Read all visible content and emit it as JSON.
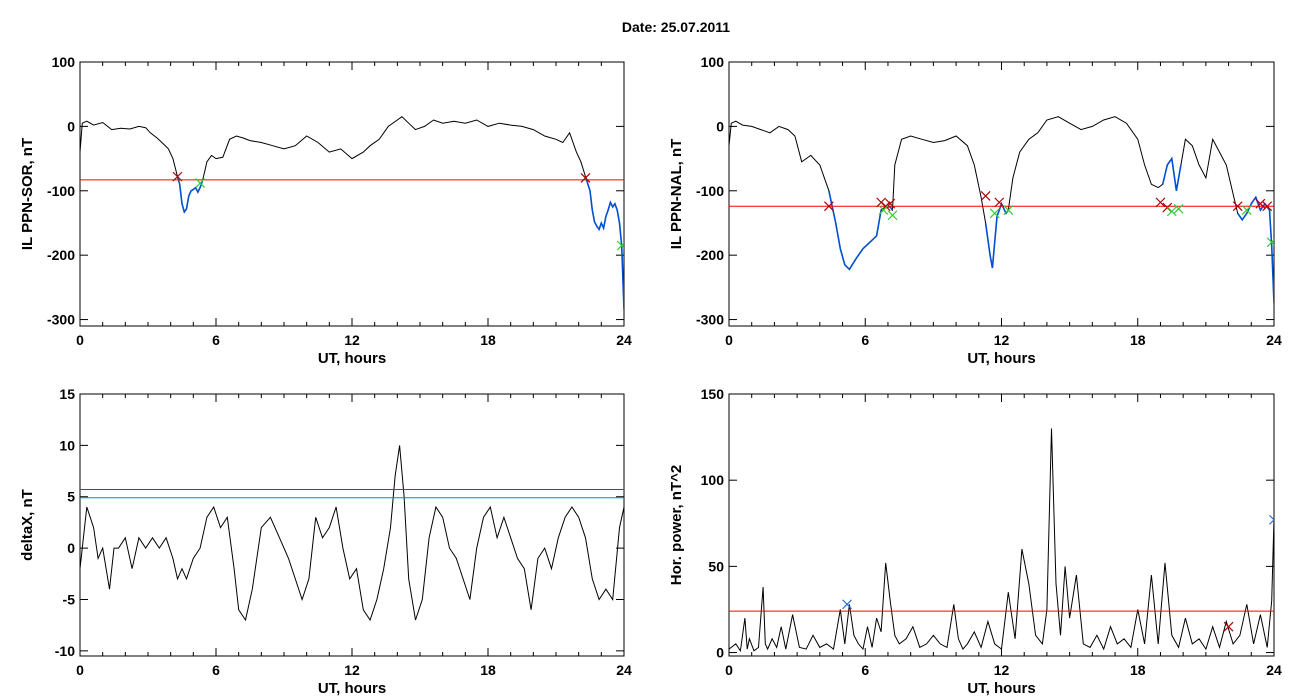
{
  "title": "Date:  25.07.2011",
  "colors": {
    "trace": "#000000",
    "threshold_red": "#ff0000",
    "threshold_cyan": "#0090a0",
    "highlight": "#0050d0",
    "marker_red": "#b00000",
    "marker_green": "#33cc33",
    "marker_blue": "#3070d0"
  },
  "chart_data": [
    {
      "type": "line",
      "title": "",
      "xlabel": "UT, hours",
      "ylabel": "IL PPN-SOR, nT",
      "xlim": [
        0,
        24
      ],
      "ylim": [
        -310,
        100
      ],
      "xticks": [
        0,
        6,
        12,
        18,
        24
      ],
      "yticks": [
        100,
        0,
        -100,
        -200,
        -300
      ],
      "thresholds": [
        {
          "value": -83,
          "color": "#ff0000"
        }
      ],
      "series": [
        {
          "x": [
            0,
            0.1,
            0.3,
            0.6,
            1.0,
            1.4,
            1.8,
            2.2,
            2.6,
            2.9,
            3.1,
            3.4,
            3.7,
            3.9,
            4.1,
            4.3,
            4.4,
            4.5,
            4.6,
            4.7,
            4.8,
            4.9,
            5.0,
            5.1,
            5.2,
            5.3,
            5.4,
            5.5,
            5.6,
            5.8,
            6.0,
            6.3,
            6.6,
            6.9,
            7.2,
            7.5,
            8.0,
            8.5,
            9.0,
            9.5,
            10.0,
            10.5,
            11.0,
            11.5,
            12.0,
            12.5,
            12.8,
            13.2,
            13.6,
            14.0,
            14.2,
            14.5,
            14.8,
            15.2,
            15.6,
            16.0,
            16.5,
            17.0,
            17.5,
            18.0,
            18.5,
            19.0,
            19.5,
            20.0,
            20.5,
            21.0,
            21.3,
            21.6,
            21.9,
            22.1,
            22.3,
            22.5,
            22.6,
            22.7,
            22.8,
            22.9,
            23.0,
            23.1,
            23.2,
            23.3,
            23.4,
            23.5,
            23.6,
            23.7,
            23.8,
            23.9,
            24.0
          ],
          "values": [
            -40,
            5,
            8,
            2,
            6,
            -5,
            -3,
            -4,
            0,
            -2,
            -10,
            -18,
            -28,
            -35,
            -50,
            -78,
            -90,
            -120,
            -133,
            -128,
            -108,
            -100,
            -98,
            -95,
            -102,
            -95,
            -85,
            -70,
            -55,
            -45,
            -50,
            -48,
            -20,
            -15,
            -18,
            -22,
            -25,
            -30,
            -35,
            -30,
            -15,
            -25,
            -40,
            -35,
            -50,
            -40,
            -30,
            -20,
            0,
            10,
            15,
            5,
            -5,
            0,
            10,
            5,
            8,
            5,
            10,
            0,
            5,
            2,
            0,
            -5,
            -15,
            -20,
            -25,
            -10,
            -40,
            -55,
            -78,
            -100,
            -130,
            -148,
            -155,
            -160,
            -150,
            -158,
            -140,
            -130,
            -118,
            -125,
            -120,
            -130,
            -150,
            -185,
            -285
          ]
        }
      ],
      "highlight_segments": [
        [
          4.2,
          5.4
        ],
        [
          22.3,
          24.0
        ]
      ],
      "markers": [
        {
          "x": 4.3,
          "y": -78,
          "color": "#b00000"
        },
        {
          "x": 5.3,
          "y": -88,
          "color": "#33cc33"
        },
        {
          "x": 22.3,
          "y": -80,
          "color": "#b00000"
        },
        {
          "x": 23.9,
          "y": -185,
          "color": "#33cc33"
        }
      ]
    },
    {
      "type": "line",
      "title": "",
      "xlabel": "UT, hours",
      "ylabel": "IL PPN-NAL, nT",
      "xlim": [
        0,
        24
      ],
      "ylim": [
        -310,
        100
      ],
      "xticks": [
        0,
        6,
        12,
        18,
        24
      ],
      "yticks": [
        100,
        0,
        -100,
        -200,
        -300
      ],
      "thresholds": [
        {
          "value": -124,
          "color": "#ff0000"
        }
      ],
      "series": [
        {
          "x": [
            0,
            0.1,
            0.3,
            0.6,
            1.0,
            1.4,
            1.8,
            2.2,
            2.6,
            2.9,
            3.2,
            3.6,
            4.0,
            4.4,
            4.7,
            4.9,
            5.1,
            5.3,
            5.6,
            5.9,
            6.2,
            6.5,
            6.7,
            6.9,
            7.1,
            7.2,
            7.3,
            7.6,
            8.0,
            8.5,
            9.0,
            9.5,
            10.0,
            10.5,
            10.8,
            11.1,
            11.3,
            11.5,
            11.6,
            11.7,
            11.8,
            12.0,
            12.2,
            12.3,
            12.5,
            12.8,
            13.2,
            13.6,
            14.0,
            14.5,
            15.0,
            15.5,
            16.0,
            16.5,
            17.0,
            17.5,
            18.0,
            18.3,
            18.6,
            18.9,
            19.1,
            19.3,
            19.5,
            19.7,
            19.9,
            20.1,
            20.4,
            20.7,
            21.0,
            21.3,
            21.6,
            21.9,
            22.2,
            22.4,
            22.6,
            22.8,
            23.0,
            23.2,
            23.4,
            23.6,
            23.8,
            23.9,
            24.0
          ],
          "values": [
            -30,
            5,
            8,
            2,
            0,
            -5,
            -10,
            0,
            -5,
            -15,
            -55,
            -45,
            -60,
            -100,
            -150,
            -190,
            -215,
            -222,
            -205,
            -190,
            -180,
            -170,
            -130,
            -125,
            -125,
            -130,
            -60,
            -20,
            -15,
            -20,
            -25,
            -22,
            -15,
            -30,
            -60,
            -110,
            -150,
            -200,
            -220,
            -180,
            -140,
            -120,
            -135,
            -130,
            -80,
            -40,
            -20,
            -10,
            10,
            15,
            5,
            -5,
            0,
            10,
            15,
            5,
            -20,
            -60,
            -90,
            -95,
            -90,
            -60,
            -50,
            -100,
            -60,
            -20,
            -30,
            -60,
            -80,
            -20,
            -40,
            -60,
            -105,
            -135,
            -145,
            -135,
            -120,
            -110,
            -130,
            -120,
            -130,
            -185,
            -275
          ]
        }
      ],
      "highlight_segments": [
        [
          4.4,
          7.2
        ],
        [
          11.3,
          12.4
        ],
        [
          19.1,
          20.0
        ],
        [
          22.3,
          24.0
        ]
      ],
      "markers": [
        {
          "x": 4.4,
          "y": -124,
          "color": "#b00000"
        },
        {
          "x": 6.7,
          "y": -118,
          "color": "#b00000"
        },
        {
          "x": 6.9,
          "y": -124,
          "color": "#b00000"
        },
        {
          "x": 7.1,
          "y": -120,
          "color": "#b00000"
        },
        {
          "x": 7.2,
          "y": -138,
          "color": "#33cc33"
        },
        {
          "x": 6.8,
          "y": -130,
          "color": "#33cc33"
        },
        {
          "x": 11.3,
          "y": -108,
          "color": "#b00000"
        },
        {
          "x": 11.9,
          "y": -118,
          "color": "#b00000"
        },
        {
          "x": 11.7,
          "y": -135,
          "color": "#33cc33"
        },
        {
          "x": 12.3,
          "y": -130,
          "color": "#33cc33"
        },
        {
          "x": 19.0,
          "y": -118,
          "color": "#b00000"
        },
        {
          "x": 19.3,
          "y": -126,
          "color": "#b00000"
        },
        {
          "x": 19.5,
          "y": -132,
          "color": "#33cc33"
        },
        {
          "x": 19.8,
          "y": -128,
          "color": "#33cc33"
        },
        {
          "x": 22.4,
          "y": -124,
          "color": "#b00000"
        },
        {
          "x": 23.4,
          "y": -120,
          "color": "#b00000"
        },
        {
          "x": 23.7,
          "y": -124,
          "color": "#b00000"
        },
        {
          "x": 22.8,
          "y": -130,
          "color": "#33cc33"
        },
        {
          "x": 23.9,
          "y": -180,
          "color": "#33cc33"
        }
      ]
    },
    {
      "type": "line",
      "title": "",
      "xlabel": "UT, hours",
      "ylabel": "deltaX, nT",
      "xlim": [
        0,
        24
      ],
      "ylim": [
        -10.5,
        15
      ],
      "xticks": [
        0,
        6,
        12,
        18,
        24
      ],
      "yticks": [
        15,
        10,
        5,
        0,
        -5,
        -10
      ],
      "thresholds": [
        {
          "value": 5.7,
          "color": "#ff0000"
        },
        {
          "value": 4.9,
          "color": "#0090a0"
        }
      ],
      "series": [
        {
          "x": [
            0,
            0.3,
            0.6,
            0.8,
            1.0,
            1.3,
            1.5,
            1.7,
            2.0,
            2.3,
            2.6,
            2.9,
            3.2,
            3.5,
            3.8,
            4.1,
            4.3,
            4.5,
            4.7,
            5.0,
            5.3,
            5.6,
            5.9,
            6.2,
            6.5,
            6.8,
            7.0,
            7.3,
            7.6,
            8.0,
            8.4,
            8.8,
            9.2,
            9.5,
            9.8,
            10.1,
            10.4,
            10.7,
            11.0,
            11.3,
            11.6,
            11.9,
            12.2,
            12.5,
            12.8,
            13.1,
            13.4,
            13.7,
            13.9,
            14.1,
            14.3,
            14.5,
            14.8,
            15.1,
            15.4,
            15.7,
            16.0,
            16.3,
            16.6,
            16.9,
            17.2,
            17.5,
            17.8,
            18.1,
            18.4,
            18.7,
            19.0,
            19.3,
            19.6,
            19.9,
            20.2,
            20.5,
            20.8,
            21.1,
            21.4,
            21.7,
            22.0,
            22.3,
            22.6,
            22.9,
            23.2,
            23.5,
            23.8,
            24.0
          ],
          "values": [
            -2,
            4,
            2,
            -1,
            0,
            -4,
            0,
            0,
            1,
            -2,
            1,
            0,
            1,
            0,
            1,
            -1,
            -3,
            -2,
            -3,
            -1,
            0,
            3,
            4,
            2,
            3,
            -2,
            -6,
            -7,
            -4,
            2,
            3,
            1,
            -1,
            -3,
            -5,
            -3,
            3,
            1,
            2,
            4,
            0,
            -3,
            -2,
            -6,
            -7,
            -5,
            -2,
            2,
            7,
            10,
            5,
            -3,
            -7,
            -5,
            1,
            4,
            3,
            0,
            -1,
            -3,
            -5,
            0,
            3,
            4,
            1,
            3,
            1,
            -1,
            -2,
            -6,
            -1,
            0,
            -2,
            1,
            3,
            4,
            3,
            1,
            -3,
            -5,
            -4,
            -5,
            2,
            4
          ]
        }
      ]
    },
    {
      "type": "line",
      "title": "",
      "xlabel": "UT, hours",
      "ylabel": "Hor. power, nT^2",
      "xlim": [
        0,
        24
      ],
      "ylim": [
        -2,
        150
      ],
      "xticks": [
        0,
        6,
        12,
        18,
        24
      ],
      "yticks": [
        150,
        100,
        50,
        0
      ],
      "thresholds": [
        {
          "value": 24,
          "color": "#ff0000"
        }
      ],
      "series": [
        {
          "x": [
            0,
            0.3,
            0.5,
            0.7,
            0.8,
            0.9,
            1.1,
            1.3,
            1.5,
            1.6,
            1.7,
            1.9,
            2.1,
            2.3,
            2.5,
            2.8,
            3.1,
            3.4,
            3.7,
            4.0,
            4.3,
            4.6,
            4.9,
            5.1,
            5.3,
            5.5,
            5.7,
            5.9,
            6.1,
            6.3,
            6.5,
            6.7,
            6.9,
            7.1,
            7.3,
            7.5,
            7.8,
            8.1,
            8.4,
            8.7,
            9.0,
            9.3,
            9.6,
            9.9,
            10.1,
            10.3,
            10.5,
            10.8,
            11.1,
            11.4,
            11.7,
            12.0,
            12.3,
            12.6,
            12.9,
            13.2,
            13.5,
            13.8,
            14.0,
            14.2,
            14.4,
            14.6,
            14.8,
            15.0,
            15.3,
            15.6,
            15.9,
            16.2,
            16.5,
            16.8,
            17.1,
            17.4,
            17.7,
            18.0,
            18.3,
            18.6,
            18.9,
            19.2,
            19.5,
            19.8,
            20.1,
            20.4,
            20.7,
            21.0,
            21.3,
            21.6,
            21.9,
            22.2,
            22.5,
            22.8,
            23.1,
            23.4,
            23.7,
            23.9,
            24.0
          ],
          "values": [
            2,
            5,
            1,
            20,
            2,
            8,
            1,
            3,
            38,
            5,
            2,
            8,
            3,
            15,
            2,
            22,
            3,
            2,
            10,
            3,
            5,
            2,
            25,
            5,
            28,
            10,
            5,
            2,
            15,
            3,
            20,
            12,
            52,
            30,
            10,
            5,
            8,
            15,
            3,
            5,
            10,
            5,
            3,
            28,
            8,
            2,
            5,
            12,
            3,
            18,
            5,
            2,
            35,
            8,
            60,
            40,
            10,
            5,
            25,
            130,
            40,
            10,
            50,
            20,
            45,
            5,
            3,
            10,
            2,
            15,
            5,
            8,
            3,
            25,
            5,
            45,
            5,
            52,
            10,
            3,
            20,
            5,
            8,
            2,
            15,
            3,
            18,
            5,
            10,
            28,
            5,
            22,
            3,
            30,
            78
          ]
        }
      ],
      "markers": [
        {
          "x": 5.2,
          "y": 28,
          "color": "#3070d0"
        },
        {
          "x": 22.0,
          "y": 15,
          "color": "#b00000"
        },
        {
          "x": 24.0,
          "y": 77,
          "color": "#3070d0"
        }
      ]
    }
  ]
}
